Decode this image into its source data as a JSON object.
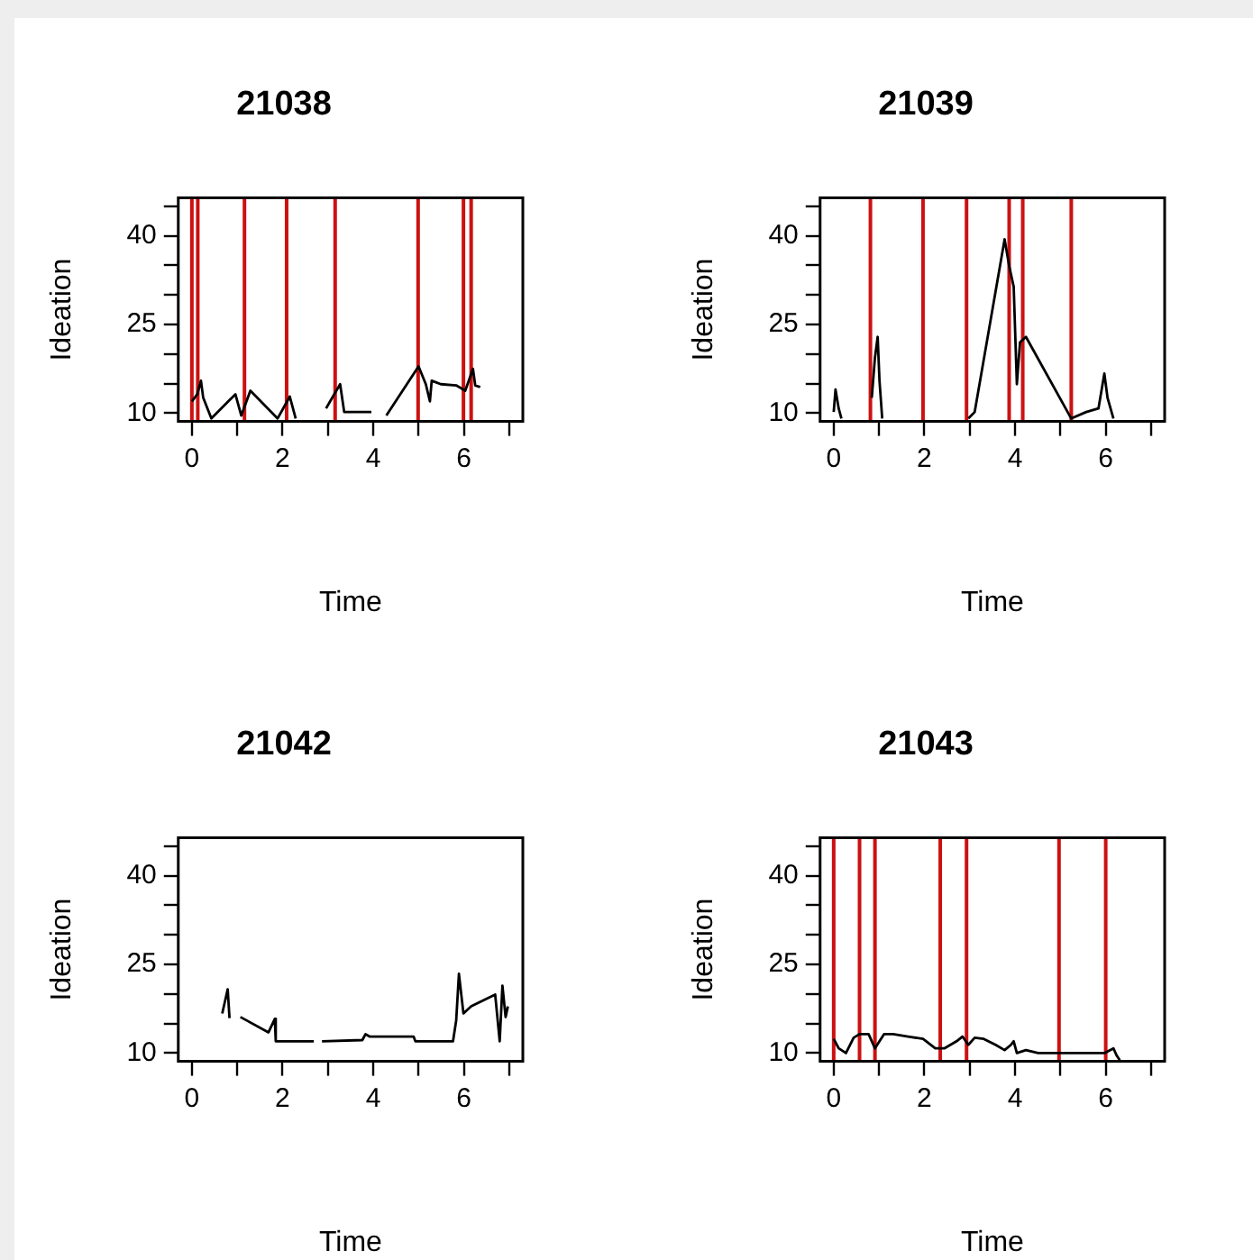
{
  "chart_data": [
    {
      "type": "line",
      "title": "21038",
      "xlabel": "Time",
      "ylabel": "Ideation",
      "grid": false,
      "legend": false,
      "marker": "none",
      "line_style": "solid",
      "xlim": [
        -0.3,
        7.3
      ],
      "xticks": [
        0,
        {
          "value": 1,
          "label": null
        },
        2,
        {
          "value": 3,
          "label": null
        },
        4,
        {
          "value": 5,
          "label": null
        },
        6,
        {
          "value": 7,
          "label": null
        }
      ],
      "ylim": [
        8.6,
        46.4
      ],
      "yticks": [
        10,
        {
          "value": 15,
          "label": null
        },
        {
          "value": 20,
          "label": null
        },
        25,
        {
          "value": 30,
          "label": null
        },
        {
          "value": 35,
          "label": null
        },
        40,
        {
          "value": 45,
          "label": null
        }
      ],
      "series": [
        {
          "color": "#000000",
          "x": [
            0.0,
            0.12,
            0.2,
            0.25,
            0.43,
            0.96,
            1.09,
            1.29,
            1.89,
            2.16,
            2.29,
            2.6,
            2.96,
            3.05,
            3.27,
            3.36,
            3.96,
            4.1,
            4.29,
            5.0,
            5.16,
            5.25,
            5.29,
            5.49,
            5.83,
            6.03,
            6.2,
            6.25,
            6.36
          ],
          "values": [
            12.0,
            13.2,
            15.5,
            12.6,
            9.1,
            13.2,
            9.6,
            13.8,
            9.1,
            12.8,
            9.1,
            null,
            10.8,
            12.0,
            14.9,
            10.2,
            10.2,
            null,
            9.6,
            17.9,
            14.9,
            12.0,
            15.5,
            14.9,
            14.7,
            13.8,
            17.5,
            14.7,
            14.4
          ]
        }
      ],
      "ref_lines": [
        {
          "axis": "x",
          "value": 0.0,
          "color": "#cc1111"
        },
        {
          "axis": "x",
          "value": 0.13,
          "color": "#cc1111"
        },
        {
          "axis": "x",
          "value": 1.16,
          "color": "#cc1111"
        },
        {
          "axis": "x",
          "value": 2.09,
          "color": "#cc1111"
        },
        {
          "axis": "x",
          "value": 3.16,
          "color": "#cc1111"
        },
        {
          "axis": "x",
          "value": 4.99,
          "color": "#cc1111"
        },
        {
          "axis": "x",
          "value": 5.99,
          "color": "#cc1111"
        },
        {
          "axis": "x",
          "value": 6.16,
          "color": "#cc1111"
        }
      ]
    },
    {
      "type": "line",
      "title": "21039",
      "xlabel": "Time",
      "ylabel": "Ideation",
      "grid": false,
      "legend": false,
      "marker": "none",
      "line_style": "solid",
      "xlim": [
        -0.3,
        7.3
      ],
      "xticks": [
        0,
        {
          "value": 1,
          "label": null
        },
        2,
        {
          "value": 3,
          "label": null
        },
        4,
        {
          "value": 5,
          "label": null
        },
        6,
        {
          "value": 7,
          "label": null
        }
      ],
      "ylim": [
        8.6,
        46.4
      ],
      "yticks": [
        10,
        {
          "value": 15,
          "label": null
        },
        {
          "value": 20,
          "label": null
        },
        25,
        {
          "value": 30,
          "label": null
        },
        {
          "value": 35,
          "label": null
        },
        40,
        {
          "value": 45,
          "label": null
        }
      ],
      "series": [
        {
          "color": "#000000",
          "x": [
            0.0,
            0.04,
            0.11,
            0.17,
            0.5,
            0.84,
            0.91,
            0.97,
            1.01,
            1.07,
            2.0,
            2.97,
            3.11,
            3.77,
            3.87,
            3.97,
            4.04,
            4.11,
            4.24,
            5.24,
            5.57,
            5.84,
            5.97,
            6.04,
            6.17
          ],
          "values": [
            10.2,
            14.0,
            10.8,
            9.1,
            null,
            12.6,
            19.4,
            22.9,
            15.5,
            9.1,
            null,
            9.1,
            10.2,
            39.4,
            34.9,
            31.4,
            14.9,
            22.0,
            22.9,
            9.1,
            10.2,
            10.8,
            16.7,
            12.6,
            9.1
          ]
        }
      ],
      "ref_lines": [
        {
          "axis": "x",
          "value": 0.81,
          "color": "#cc1111"
        },
        {
          "axis": "x",
          "value": 1.97,
          "color": "#cc1111"
        },
        {
          "axis": "x",
          "value": 2.93,
          "color": "#cc1111"
        },
        {
          "axis": "x",
          "value": 3.87,
          "color": "#cc1111"
        },
        {
          "axis": "x",
          "value": 4.17,
          "color": "#cc1111"
        },
        {
          "axis": "x",
          "value": 5.24,
          "color": "#cc1111"
        }
      ]
    },
    {
      "type": "line",
      "title": "21042",
      "xlabel": "Time",
      "ylabel": "Ideation",
      "grid": false,
      "legend": false,
      "marker": "none",
      "line_style": "solid",
      "xlim": [
        -0.3,
        7.3
      ],
      "xticks": [
        0,
        {
          "value": 1,
          "label": null
        },
        2,
        {
          "value": 3,
          "label": null
        },
        4,
        {
          "value": 5,
          "label": null
        },
        6,
        {
          "value": 7,
          "label": null
        }
      ],
      "ylim": [
        8.6,
        46.4
      ],
      "yticks": [
        10,
        {
          "value": 15,
          "label": null
        },
        {
          "value": 20,
          "label": null
        },
        25,
        {
          "value": 30,
          "label": null
        },
        {
          "value": 35,
          "label": null
        },
        40,
        {
          "value": 45,
          "label": null
        }
      ],
      "series": [
        {
          "color": "#000000",
          "x": [
            0.67,
            0.79,
            0.83,
            0.95,
            1.07,
            1.69,
            1.83,
            1.85,
            2.69,
            2.78,
            2.87,
            3.76,
            3.83,
            3.92,
            4.89,
            4.93,
            5.76,
            5.83,
            5.89,
            5.99,
            6.16,
            6.69,
            6.79,
            6.85,
            6.92,
            6.97
          ],
          "values": [
            16.7,
            20.8,
            15.9,
            null,
            16.1,
            13.5,
            15.8,
            12.0,
            12.0,
            null,
            12.0,
            12.2,
            13.2,
            12.8,
            12.8,
            12.0,
            12.0,
            15.5,
            23.4,
            16.7,
            17.9,
            19.9,
            12.0,
            21.4,
            16.1,
            17.9
          ]
        }
      ]
    },
    {
      "type": "line",
      "title": "21043",
      "xlabel": "Time",
      "ylabel": "Ideation",
      "grid": false,
      "legend": false,
      "marker": "none",
      "line_style": "solid",
      "xlim": [
        -0.3,
        7.3
      ],
      "xticks": [
        0,
        {
          "value": 1,
          "label": null
        },
        2,
        {
          "value": 3,
          "label": null
        },
        4,
        {
          "value": 5,
          "label": null
        },
        6,
        {
          "value": 7,
          "label": null
        }
      ],
      "ylim": [
        8.6,
        46.4
      ],
      "yticks": [
        10,
        {
          "value": 15,
          "label": null
        },
        {
          "value": 20,
          "label": null
        },
        25,
        {
          "value": 30,
          "label": null
        },
        {
          "value": 35,
          "label": null
        },
        40,
        {
          "value": 45,
          "label": null
        }
      ],
      "series": [
        {
          "color": "#000000",
          "x": [
            0.0,
            0.11,
            0.27,
            0.44,
            0.57,
            0.77,
            0.91,
            1.01,
            1.11,
            1.31,
            1.64,
            1.97,
            2.24,
            2.44,
            2.71,
            2.84,
            2.97,
            3.11,
            3.31,
            3.57,
            3.77,
            3.91,
            3.97,
            4.04,
            4.24,
            4.51,
            4.97,
            5.97,
            6.17,
            6.24,
            6.31
          ],
          "values": [
            12.4,
            10.8,
            10.0,
            12.6,
            13.2,
            13.2,
            10.8,
            12.0,
            13.2,
            13.2,
            12.8,
            12.4,
            10.8,
            10.8,
            12.0,
            12.8,
            11.4,
            12.6,
            12.4,
            11.4,
            10.5,
            11.4,
            12.0,
            10.0,
            10.5,
            10.0,
            10.0,
            10.0,
            10.8,
            9.6,
            8.8
          ]
        }
      ],
      "ref_lines": [
        {
          "axis": "x",
          "value": 0.0,
          "color": "#cc1111"
        },
        {
          "axis": "x",
          "value": 0.57,
          "color": "#cc1111"
        },
        {
          "axis": "x",
          "value": 0.91,
          "color": "#cc1111"
        },
        {
          "axis": "x",
          "value": 2.35,
          "color": "#cc1111"
        },
        {
          "axis": "x",
          "value": 2.93,
          "color": "#cc1111"
        },
        {
          "axis": "x",
          "value": 4.97,
          "color": "#cc1111"
        },
        {
          "axis": "x",
          "value": 6.0,
          "color": "#cc1111"
        }
      ]
    }
  ]
}
